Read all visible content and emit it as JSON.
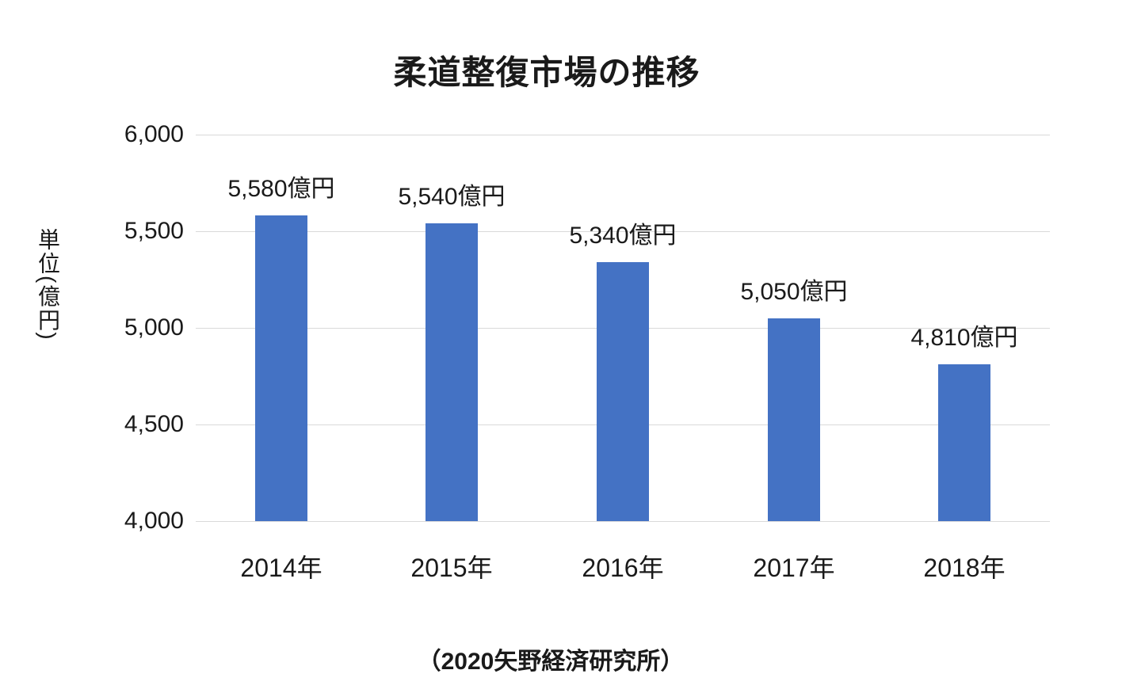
{
  "chart_data": {
    "type": "bar",
    "title": "柔道整復市場の推移",
    "ylabel": "単位(億円)",
    "xlabel": "",
    "categories": [
      "2014年",
      "2015年",
      "2016年",
      "2017年",
      "2018年"
    ],
    "values": [
      5580,
      5540,
      5340,
      5050,
      4810
    ],
    "value_labels": [
      "5,580億円",
      "5,540億円",
      "5,340億円",
      "5,050億円",
      "4,810億円"
    ],
    "unit": "億円",
    "y_ticks": [
      6000,
      5500,
      5000,
      4500,
      4000
    ],
    "y_tick_labels": [
      "6,000",
      "5,500",
      "5,000",
      "4,500",
      "4,000"
    ],
    "ylim": [
      4000,
      6000
    ],
    "grid": true,
    "legend": "none",
    "bar_color": "#4472C4",
    "gridline_color": "#d9d9d9",
    "source": "（2020矢野経済研究所）"
  }
}
